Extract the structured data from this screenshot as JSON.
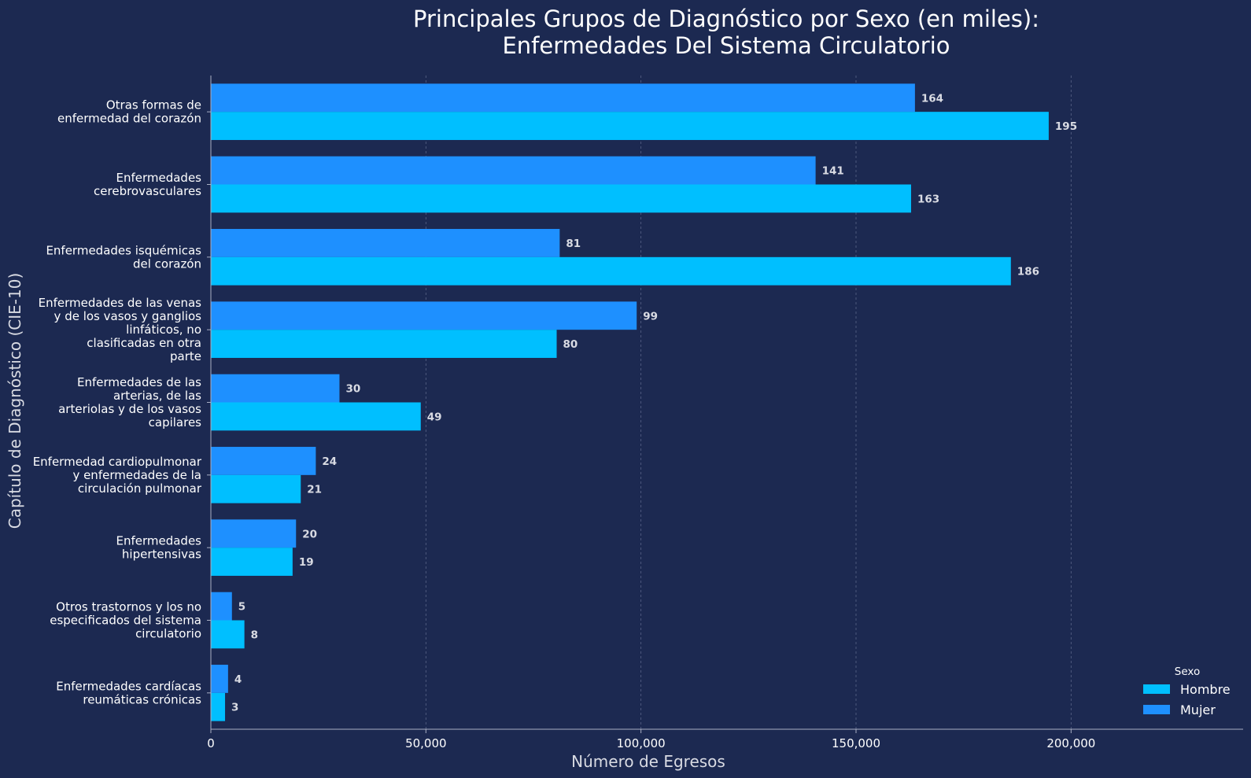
{
  "chart_data": {
    "type": "bar",
    "orientation": "horizontal",
    "title": [
      "Principales Grupos de Diagnóstico por Sexo (en miles):",
      "Enfermedades Del Sistema Circulatorio"
    ],
    "xlabel": "Número de Egresos",
    "ylabel": "Capítulo de Diagnóstico (CIE-10)",
    "xlim": [
      0,
      240000
    ],
    "xticks": [
      0,
      50000,
      100000,
      150000,
      200000
    ],
    "xtick_labels": [
      "0",
      "50,000",
      "100,000",
      "150,000",
      "200,000"
    ],
    "grid": "vertical dashed",
    "legend": {
      "title": "Sexo",
      "position": "bottom-right"
    },
    "categories": [
      [
        "Otras formas de",
        "enfermedad del corazón"
      ],
      [
        "Enfermedades",
        "cerebrovasculares"
      ],
      [
        "Enfermedades isquémicas",
        "del corazón"
      ],
      [
        "Enfermedades de las venas",
        "y de los vasos y ganglios",
        "linfáticos, no",
        "clasificadas en otra",
        "parte"
      ],
      [
        "Enfermedades de las",
        "arterias, de las",
        "arteriolas y de los vasos",
        "capilares"
      ],
      [
        "Enfermedad cardiopulmonar",
        "y enfermedades de la",
        "circulación pulmonar"
      ],
      [
        "Enfermedades",
        "hipertensivas"
      ],
      [
        "Otros trastornos y los no",
        "especificados del sistema",
        "circulatorio"
      ],
      [
        "Enfermedades cardíacas",
        "reumáticas crónicas"
      ]
    ],
    "series": [
      {
        "name": "Hombre",
        "color": "#00bfff",
        "values": [
          194800,
          162800,
          186000,
          80400,
          48800,
          20900,
          19000,
          7800,
          3300
        ],
        "labels": [
          "195",
          "163",
          "186",
          "80",
          "49",
          "21",
          "19",
          "8",
          "3"
        ]
      },
      {
        "name": "Mujer",
        "color": "#1e90ff",
        "values": [
          163700,
          140600,
          81100,
          99000,
          29900,
          24400,
          19800,
          4900,
          4000
        ],
        "labels": [
          "164",
          "141",
          "81",
          "99",
          "30",
          "24",
          "20",
          "5",
          "4"
        ]
      }
    ]
  }
}
